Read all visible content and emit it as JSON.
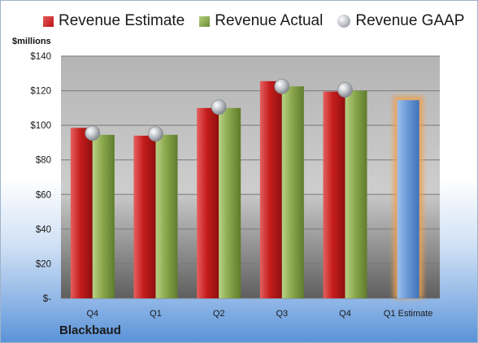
{
  "chart_data": {
    "type": "bar",
    "title": "",
    "ylabel": "$millions",
    "xlabel": "",
    "company": "Blackbaud",
    "ylim": [
      0,
      140
    ],
    "yticks": [
      0,
      20,
      40,
      60,
      80,
      100,
      120,
      140
    ],
    "ytick_labels": [
      "$-",
      "$20",
      "$40",
      "$60",
      "$80",
      "$100",
      "$120",
      "$140"
    ],
    "categories": [
      "Q4",
      "Q1",
      "Q2",
      "Q3",
      "Q4",
      "Q1 Estimate"
    ],
    "legend_position": "top",
    "grid": true,
    "series": [
      {
        "name": "Revenue Estimate",
        "type": "bar",
        "color": "#c21b1b",
        "values": [
          98.5,
          94,
          110,
          125.5,
          119.5,
          null
        ]
      },
      {
        "name": "Revenue Actual",
        "type": "bar",
        "color": "#86a44a",
        "values": [
          94.5,
          94.5,
          110,
          122.5,
          120,
          null
        ]
      },
      {
        "name": "Revenue GAAP",
        "type": "marker",
        "color": "#a9adb3",
        "values": [
          95.5,
          95,
          110.5,
          122.5,
          120.5,
          null
        ]
      }
    ],
    "estimate_bar": {
      "category": "Q1 Estimate",
      "value": 114.5,
      "color": "#6a9bd8",
      "glow": "#f0a050"
    }
  }
}
